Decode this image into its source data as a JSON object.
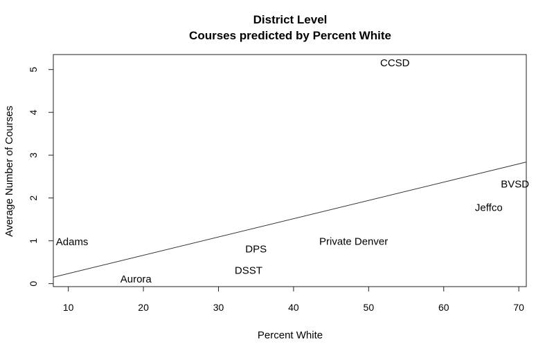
{
  "chart_data": {
    "type": "scatter",
    "title": "District Level",
    "subtitle": "Courses predicted by Percent White",
    "xlabel": "Percent White",
    "ylabel": "Average Number of Courses",
    "xlim": [
      8,
      71
    ],
    "ylim": [
      -0.07,
      5.35
    ],
    "x_ticks": [
      10,
      20,
      30,
      40,
      50,
      60,
      70
    ],
    "y_ticks": [
      0,
      1,
      2,
      3,
      4,
      5
    ],
    "grid": false,
    "points": [
      {
        "label": "CCSD",
        "x": 53.5,
        "y": 5.15
      },
      {
        "label": "BVSD",
        "x": 69.5,
        "y": 2.32
      },
      {
        "label": "Jeffco",
        "x": 66,
        "y": 1.77
      },
      {
        "label": "Adams",
        "x": 10.5,
        "y": 0.97
      },
      {
        "label": "Private Denver",
        "x": 48,
        "y": 0.98
      },
      {
        "label": "DPS",
        "x": 35,
        "y": 0.8
      },
      {
        "label": "DSST",
        "x": 34,
        "y": 0.3
      },
      {
        "label": "Aurora",
        "x": 19,
        "y": 0.1
      }
    ],
    "fit_line": {
      "x": [
        8,
        71
      ],
      "y": [
        0.15,
        2.84
      ]
    }
  }
}
